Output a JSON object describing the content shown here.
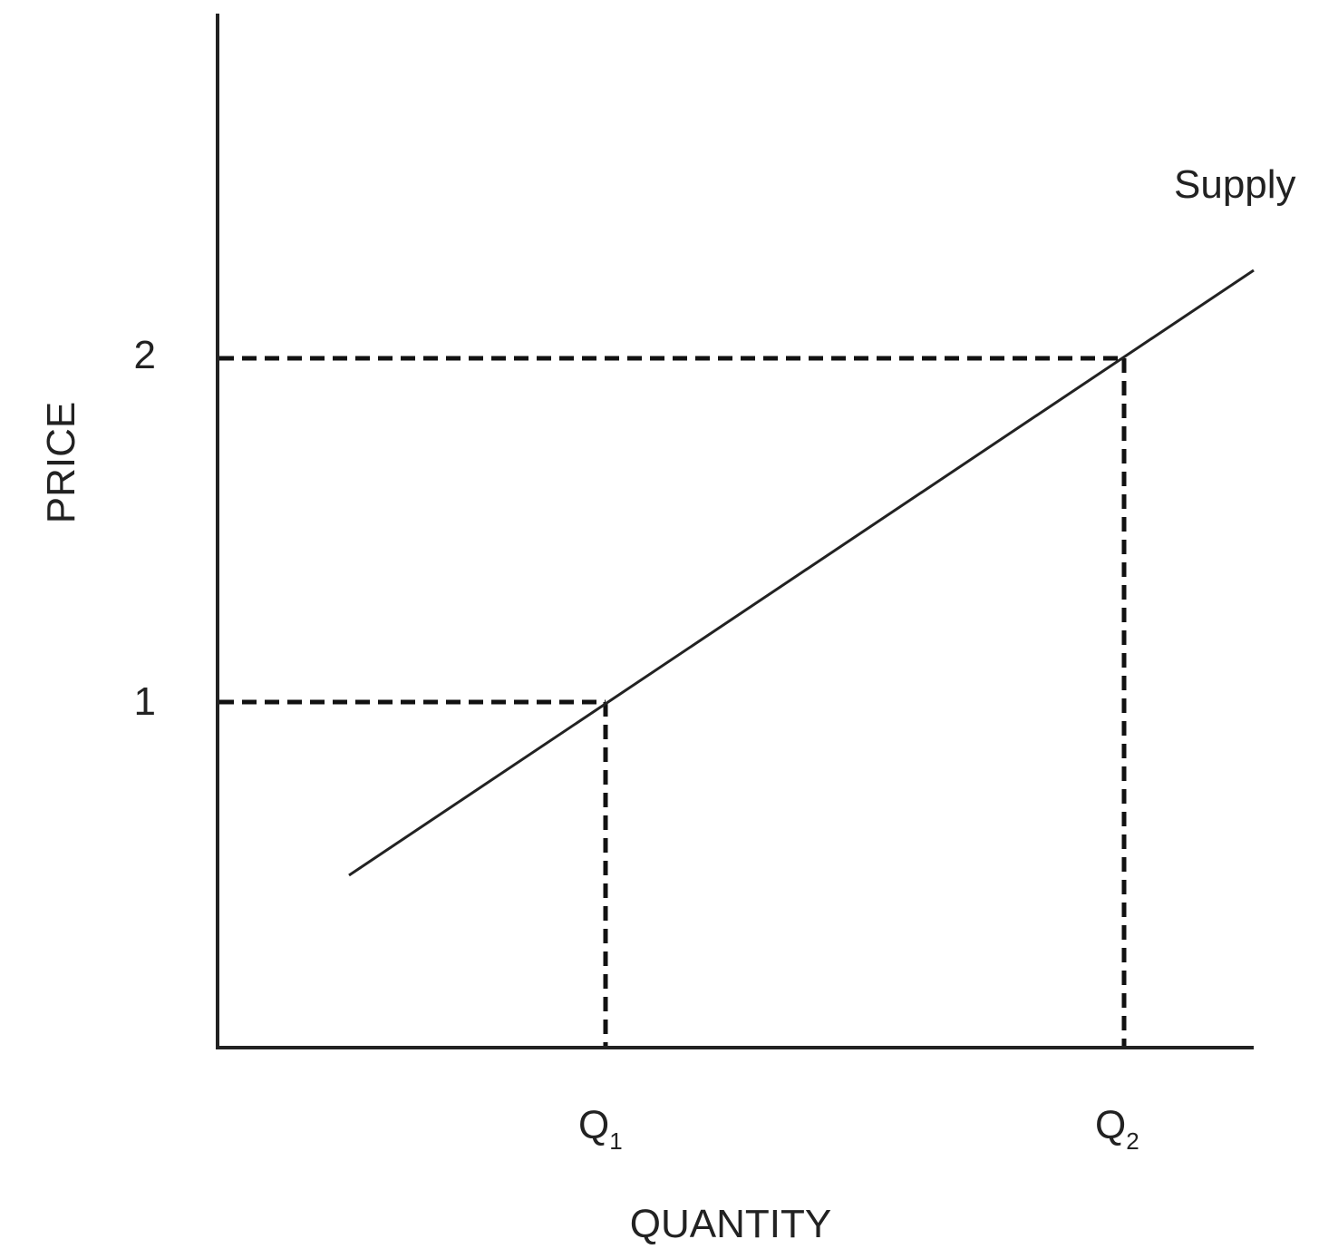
{
  "y_axis": {
    "label": "PRICE",
    "ticks": [
      "1",
      "2"
    ]
  },
  "x_axis": {
    "label": "QUANTITY",
    "ticks": [
      {
        "letter": "Q",
        "subscript": "1"
      },
      {
        "letter": "Q",
        "subscript": "2"
      }
    ]
  },
  "curve": {
    "label": "Supply"
  }
}
